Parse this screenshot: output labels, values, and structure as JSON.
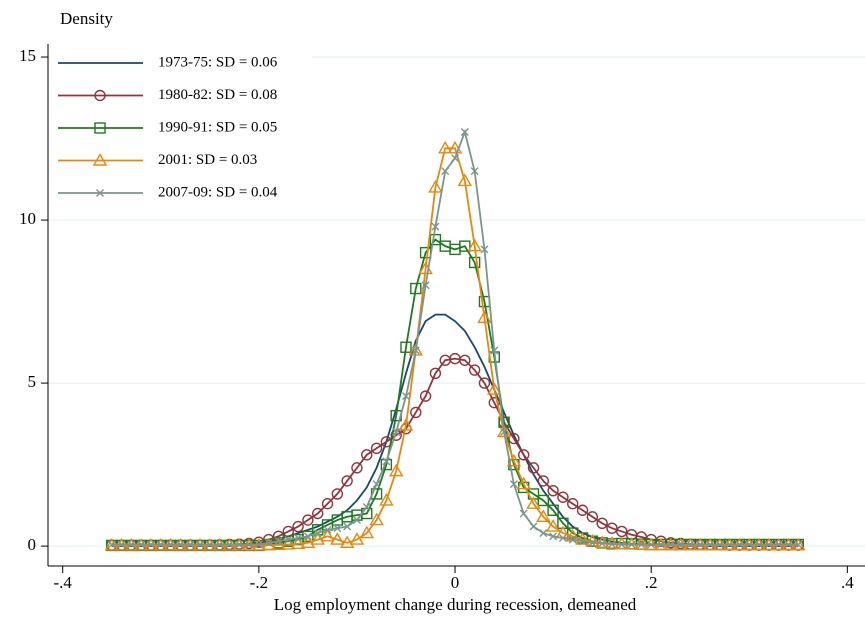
{
  "chart_data": {
    "type": "line",
    "y_label": "Density",
    "x_label": "Log employment change during recession, demeaned",
    "xlim": [
      -0.415,
      0.418
    ],
    "ylim": [
      -0.61,
      15.4
    ],
    "xticks": [
      {
        "value": -0.4,
        "label": "-.4"
      },
      {
        "value": -0.2,
        "label": "-.2"
      },
      0,
      {
        "value": 0.2,
        "label": ".2"
      },
      {
        "value": 0.4,
        "label": ".4"
      }
    ],
    "yticks": [
      0,
      5,
      10,
      15
    ],
    "grid": true,
    "legend": "top-left",
    "x": [
      -0.35,
      -0.34,
      -0.33,
      -0.32,
      -0.31,
      -0.3,
      -0.29,
      -0.28,
      -0.27,
      -0.26,
      -0.25,
      -0.24,
      -0.23,
      -0.22,
      -0.21,
      -0.2,
      -0.19,
      -0.18,
      -0.17,
      -0.16,
      -0.15,
      -0.14,
      -0.13,
      -0.12,
      -0.11,
      -0.1,
      -0.09,
      -0.08,
      -0.07,
      -0.06,
      -0.05,
      -0.04,
      -0.03,
      -0.02,
      -0.01,
      0,
      0.01,
      0.02,
      0.03,
      0.04,
      0.05,
      0.06,
      0.07,
      0.08,
      0.09,
      0.1,
      0.11,
      0.12,
      0.13,
      0.14,
      0.15,
      0.16,
      0.17,
      0.18,
      0.19,
      0.2,
      0.21,
      0.22,
      0.23,
      0.24,
      0.25,
      0.26,
      0.27,
      0.28,
      0.29,
      0.3,
      0.31,
      0.32,
      0.33,
      0.34,
      0.35
    ],
    "series": [
      {
        "name": "1973-75: SD = 0.06",
        "color": "#1a476f",
        "marker": "none",
        "values": [
          0,
          0,
          0,
          0,
          0,
          0,
          0,
          0,
          0,
          0,
          0,
          0,
          0,
          0.02,
          0.05,
          0.1,
          0.15,
          0.2,
          0.3,
          0.4,
          0.5,
          0.6,
          0.75,
          0.9,
          1.1,
          1.4,
          1.8,
          2.4,
          3.2,
          4.2,
          5.3,
          6.3,
          6.9,
          7.1,
          7.1,
          6.9,
          6.6,
          6.1,
          5.5,
          4.8,
          4.1,
          3.4,
          2.8,
          2.2,
          1.7,
          1.3,
          0.9,
          0.6,
          0.4,
          0.28,
          0.2,
          0.14,
          0.1,
          0.07,
          0.05,
          0.04,
          0.02,
          0.02,
          0.01,
          0.01,
          0.01,
          0,
          0,
          0,
          0,
          0,
          0,
          0,
          0,
          0,
          0
        ]
      },
      {
        "name": "1980-82: SD = 0.08",
        "color": "#90353b",
        "marker": "circle",
        "values": [
          0.03,
          0.03,
          0.03,
          0.03,
          0.03,
          0.03,
          0.03,
          0.03,
          0.03,
          0.03,
          0.03,
          0.04,
          0.05,
          0.06,
          0.08,
          0.12,
          0.2,
          0.3,
          0.45,
          0.6,
          0.8,
          1.0,
          1.3,
          1.6,
          2.0,
          2.4,
          2.8,
          3.0,
          3.2,
          3.4,
          3.6,
          4.1,
          4.6,
          5.3,
          5.7,
          5.75,
          5.7,
          5.4,
          5.0,
          4.4,
          3.8,
          3.3,
          2.8,
          2.4,
          2.0,
          1.7,
          1.5,
          1.3,
          1.1,
          0.9,
          0.7,
          0.55,
          0.45,
          0.35,
          0.28,
          0.2,
          0.15,
          0.1,
          0.08,
          0.06,
          0.05,
          0.04,
          0.04,
          0.03,
          0.03,
          0.03,
          0.03,
          0.03,
          0.03,
          0.03,
          0.03
        ]
      },
      {
        "name": "1990-91: SD = 0.05",
        "color": "#1e7a1e",
        "marker": "square",
        "values": [
          0.02,
          0.02,
          0.02,
          0.02,
          0.02,
          0.02,
          0.02,
          0.02,
          0.02,
          0.02,
          0.02,
          0.02,
          0.02,
          0.02,
          0.02,
          0.02,
          0.05,
          0.1,
          0.15,
          0.2,
          0.3,
          0.5,
          0.65,
          0.8,
          0.9,
          0.95,
          1.0,
          1.6,
          2.5,
          4.0,
          6.1,
          7.9,
          9.0,
          9.4,
          9.2,
          9.1,
          9.2,
          8.7,
          7.5,
          5.8,
          3.8,
          2.5,
          1.8,
          1.6,
          1.4,
          1.1,
          0.7,
          0.4,
          0.25,
          0.15,
          0.1,
          0.07,
          0.08,
          0.07,
          0.06,
          0.05,
          0.05,
          0.05,
          0.05,
          0.05,
          0.05,
          0.05,
          0.05,
          0.05,
          0.05,
          0.05,
          0.05,
          0.05,
          0.05,
          0.05,
          0.05
        ]
      },
      {
        "name": "2001: SD = 0.03",
        "color": "#e8870e",
        "marker": "triangle",
        "values": [
          0.02,
          0.02,
          0.02,
          0.02,
          0.02,
          0.02,
          0.02,
          0.02,
          0.02,
          0.02,
          0.02,
          0.02,
          0.02,
          0.02,
          0.02,
          0.02,
          0.03,
          0.04,
          0.05,
          0.07,
          0.1,
          0.2,
          0.3,
          0.2,
          0.1,
          0.2,
          0.4,
          0.8,
          1.4,
          2.3,
          3.7,
          6.0,
          8.5,
          11.0,
          12.2,
          12.2,
          11.2,
          9.2,
          7.0,
          4.8,
          3.5,
          2.6,
          1.9,
          1.3,
          0.9,
          0.6,
          0.4,
          0.3,
          0.2,
          0.15,
          0.1,
          0.08,
          0.06,
          0.05,
          0.04,
          0.03,
          0.03,
          0.03,
          0.03,
          0.03,
          0.03,
          0.03,
          0.03,
          0.03,
          0.03,
          0.03,
          0.03,
          0.03,
          0.03,
          0.03,
          0.03
        ]
      },
      {
        "name": "2007-09: SD = 0.04",
        "color": "#7a958d",
        "marker": "x",
        "values": [
          0.05,
          0.05,
          0.05,
          0.05,
          0.05,
          0.05,
          0.05,
          0.05,
          0.05,
          0.05,
          0.05,
          0.05,
          0.05,
          0.05,
          0.05,
          0.05,
          0.1,
          0.15,
          0.2,
          0.25,
          0.3,
          0.4,
          0.5,
          0.55,
          0.6,
          0.8,
          1.2,
          1.9,
          2.6,
          3.5,
          4.6,
          6.0,
          8.0,
          9.8,
          11.5,
          11.9,
          12.7,
          11.5,
          9.1,
          6.0,
          3.5,
          1.9,
          1.0,
          0.6,
          0.4,
          0.3,
          0.25,
          0.2,
          0.15,
          0.1,
          0.08,
          0.06,
          0.05,
          0.05,
          0.05,
          0.05,
          0.05,
          0.05,
          0.05,
          0.05,
          0.05,
          0.05,
          0.05,
          0.05,
          0.05,
          0.05,
          0.05,
          0.05,
          0.05,
          0.05,
          0.05
        ]
      }
    ]
  }
}
